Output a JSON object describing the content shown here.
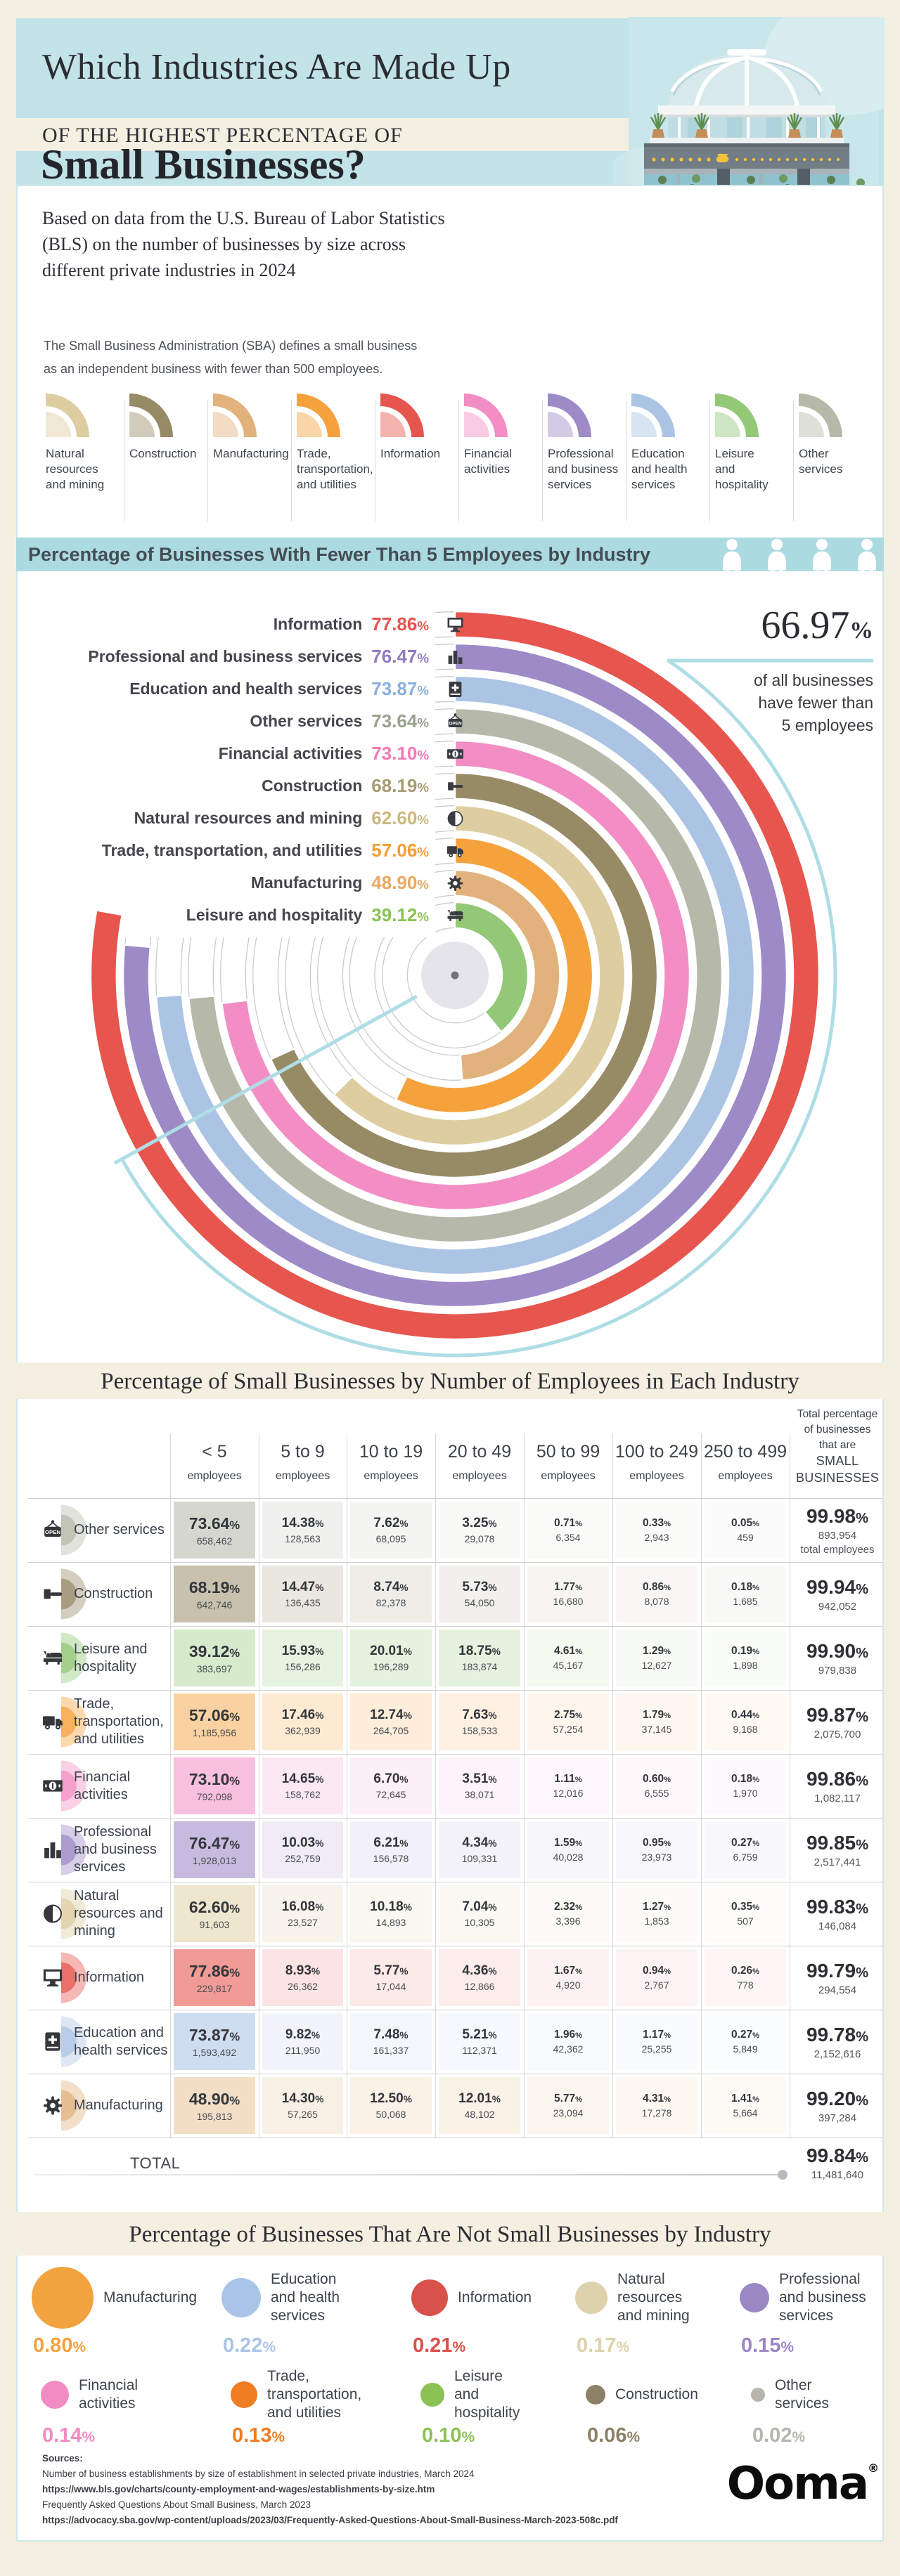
{
  "header": {
    "title1": "Which Industries Are Made Up",
    "title2": "OF THE HIGHEST PERCENTAGE OF",
    "title3": "Small Businesses?",
    "intro_lines": [
      "Based on data from the U.S. Bureau of Labor Statistics",
      "(BLS) on the number of businesses by size across",
      "different private industries in 2024"
    ],
    "sba_lines": [
      "The Small Business Administration (SBA) defines a small business",
      "as an independent business with fewer than 500 employees."
    ]
  },
  "colors": {
    "teal_header": "#c2e3e8",
    "teal_band": "#abdae0",
    "cream": "#f4f0e1",
    "blue_overlay": "#aedde5"
  },
  "industries": {
    "natural": {
      "label": "Natural resources and mining",
      "short": "Natural\nresources\nand mining",
      "color": "#ddcda0",
      "accent": "#ccb87f",
      "bubble_color": "#ddd2ab",
      "icon": "half-moon-icon"
    },
    "construction": {
      "label": "Construction",
      "short": "Construction",
      "color": "#978b66",
      "accent": "#a79c72",
      "bubble_color": "#8c8166",
      "icon": "hammer-icon"
    },
    "manufacturing": {
      "label": "Manufacturing",
      "short": "Manufacturing",
      "color": "#e2b27d",
      "accent": "#e8a963",
      "bubble_color": "#f2a33f",
      "icon": "gear-icon"
    },
    "trade": {
      "label": "Trade, transportation, and utilities",
      "short": "Trade,\ntransportation,\nand utilities",
      "color": "#f5a13c",
      "accent": "#f59d33",
      "bubble_color": "#ef7d23",
      "icon": "truck-icon"
    },
    "information": {
      "label": "Information",
      "short": "Information",
      "color": "#e6564e",
      "accent": "#e4544c",
      "bubble_color": "#d8514a",
      "icon": "monitor-icon"
    },
    "financial": {
      "label": "Financial activities",
      "short": "Financial\nactivities",
      "color": "#f28ec4",
      "accent": "#f07ab8",
      "bubble_color": "#f18cc2",
      "icon": "banknote-icon"
    },
    "professional": {
      "label": "Professional and business services",
      "short": "Professional\nand business\nservices",
      "color": "#9d8ac6",
      "accent": "#8f7cc0",
      "bubble_color": "#9c87c5",
      "icon": "bar-chart-icon"
    },
    "education": {
      "label": "Education and health services",
      "short": "Education\nand health\nservices",
      "color": "#abc4e4",
      "accent": "#8cb0dd",
      "bubble_color": "#a9c4e6",
      "icon": "book-plus-icon"
    },
    "leisure": {
      "label": "Leisure and hospitality",
      "short": "Leisure\nand\nhospitality",
      "color": "#92c876",
      "accent": "#8cc254",
      "bubble_color": "#8cc254",
      "icon": "bed-icon"
    },
    "other": {
      "label": "Other services",
      "short": "Other\nservices",
      "color": "#b6b9aa",
      "accent": "#9aa18e",
      "bubble_color": "#b6b6ae",
      "icon": "open-sign-icon"
    }
  },
  "legend_order": [
    "natural",
    "construction",
    "manufacturing",
    "trade",
    "information",
    "financial",
    "professional",
    "education",
    "leisure",
    "other"
  ],
  "band5": {
    "label": "Percentage of Businesses With Fewer Than 5 Employees by Industry"
  },
  "radial": {
    "callout": {
      "value": "66.97",
      "suffix": "%",
      "lines": [
        "of all businesses",
        "have fewer than",
        "5 employees"
      ]
    }
  },
  "sections": {
    "table_title": "Percentage of Small Businesses by Number of Employees in Each Industry",
    "not_small_title": "Percentage of Businesses That Are Not Small Businesses by Industry"
  },
  "table": {
    "columns": [
      "< 5",
      "5 to 9",
      "10 to 19",
      "20 to 49",
      "50 to 99",
      "100 to 249",
      "250 to 499"
    ],
    "col_sub": "employees",
    "total_header_lines": [
      "Total percentage",
      "of businesses",
      "that are"
    ],
    "total_header_big": [
      "SMALL",
      "BUSINESSES"
    ],
    "total_label": "TOTAL",
    "total_pct": 99.84,
    "total_count": "11,481,640",
    "first_row_note": "total employees",
    "rows": [
      {
        "id": "other",
        "cells": [
          [
            73.64,
            "658,462"
          ],
          [
            14.38,
            "128,563"
          ],
          [
            7.62,
            "68,095"
          ],
          [
            3.25,
            "29,078"
          ],
          [
            0.71,
            "6,354"
          ],
          [
            0.33,
            "2,943"
          ],
          [
            0.05,
            "459"
          ]
        ],
        "total": 99.98,
        "count": "893,954"
      },
      {
        "id": "construction",
        "cells": [
          [
            68.19,
            "642,746"
          ],
          [
            14.47,
            "136,435"
          ],
          [
            8.74,
            "82,378"
          ],
          [
            5.73,
            "54,050"
          ],
          [
            1.77,
            "16,680"
          ],
          [
            0.86,
            "8,078"
          ],
          [
            0.18,
            "1,685"
          ]
        ],
        "total": 99.94,
        "count": "942,052"
      },
      {
        "id": "leisure",
        "cells": [
          [
            39.12,
            "383,697"
          ],
          [
            15.93,
            "156,286"
          ],
          [
            20.01,
            "196,289"
          ],
          [
            18.75,
            "183,874"
          ],
          [
            4.61,
            "45,167"
          ],
          [
            1.29,
            "12,627"
          ],
          [
            0.19,
            "1,898"
          ]
        ],
        "total": 99.9,
        "count": "979,838"
      },
      {
        "id": "trade",
        "cells": [
          [
            57.06,
            "1,185,956"
          ],
          [
            17.46,
            "362,939"
          ],
          [
            12.74,
            "264,705"
          ],
          [
            7.63,
            "158,533"
          ],
          [
            2.75,
            "57,254"
          ],
          [
            1.79,
            "37,145"
          ],
          [
            0.44,
            "9,168"
          ]
        ],
        "total": 99.87,
        "count": "2,075,700"
      },
      {
        "id": "financial",
        "cells": [
          [
            73.1,
            "792,098"
          ],
          [
            14.65,
            "158,762"
          ],
          [
            6.7,
            "72,645"
          ],
          [
            3.51,
            "38,071"
          ],
          [
            1.11,
            "12,016"
          ],
          [
            0.6,
            "6,555"
          ],
          [
            0.18,
            "1,970"
          ]
        ],
        "total": 99.86,
        "count": "1,082,117"
      },
      {
        "id": "professional",
        "cells": [
          [
            76.47,
            "1,928,013"
          ],
          [
            10.03,
            "252,759"
          ],
          [
            6.21,
            "156,578"
          ],
          [
            4.34,
            "109,331"
          ],
          [
            1.59,
            "40,028"
          ],
          [
            0.95,
            "23,973"
          ],
          [
            0.27,
            "6,759"
          ]
        ],
        "total": 99.85,
        "count": "2,517,441"
      },
      {
        "id": "natural",
        "cells": [
          [
            62.6,
            "91,603"
          ],
          [
            16.08,
            "23,527"
          ],
          [
            10.18,
            "14,893"
          ],
          [
            7.04,
            "10,305"
          ],
          [
            2.32,
            "3,396"
          ],
          [
            1.27,
            "1,853"
          ],
          [
            0.35,
            "507"
          ]
        ],
        "total": 99.83,
        "count": "146,084"
      },
      {
        "id": "information",
        "cells": [
          [
            77.86,
            "229,817"
          ],
          [
            8.93,
            "26,362"
          ],
          [
            5.77,
            "17,044"
          ],
          [
            4.36,
            "12,866"
          ],
          [
            1.67,
            "4,920"
          ],
          [
            0.94,
            "2,767"
          ],
          [
            0.26,
            "778"
          ]
        ],
        "total": 99.79,
        "count": "294,554"
      },
      {
        "id": "education",
        "cells": [
          [
            73.87,
            "1,593,492"
          ],
          [
            9.82,
            "211,950"
          ],
          [
            7.48,
            "161,337"
          ],
          [
            5.21,
            "112,371"
          ],
          [
            1.96,
            "42,362"
          ],
          [
            1.17,
            "25,255"
          ],
          [
            0.27,
            "5,849"
          ]
        ],
        "total": 99.78,
        "count": "2,152,616"
      },
      {
        "id": "manufacturing",
        "cells": [
          [
            48.9,
            "195,813"
          ],
          [
            14.3,
            "57,265"
          ],
          [
            12.5,
            "50,068"
          ],
          [
            12.01,
            "48,102"
          ],
          [
            5.77,
            "23,094"
          ],
          [
            4.31,
            "17,278"
          ],
          [
            1.41,
            "5,664"
          ]
        ],
        "total": 99.2,
        "count": "397,284"
      }
    ]
  },
  "footer": {
    "sources_label": "Sources:",
    "lines": [
      {
        "text": "Number of business establishments by size of establishment in selected private industries, March 2024",
        "bold": false
      },
      {
        "text": "https://www.bls.gov/charts/county-employment-and-wages/establishments-by-size.htm",
        "bold": true
      },
      {
        "text": "Frequently Asked Questions About Small Business, March 2023",
        "bold": false
      },
      {
        "text": "https://advocacy.sba.gov/wp-content/uploads/2023/03/Frequently-Asked-Questions-About-Small-Business-March-2023-508c.pdf",
        "bold": true
      }
    ],
    "logo_text": "Ooma",
    "logo_reg": "®"
  },
  "chart_data": [
    {
      "type": "bar",
      "subtype": "radial-concentric-arcs",
      "title": "Percentage of Businesses With Fewer Than 5 Employees by Industry",
      "categories": [
        "Information",
        "Professional and business services",
        "Education and health services",
        "Other services",
        "Financial activities",
        "Construction",
        "Natural resources and mining",
        "Trade, transportation, and utilities",
        "Manufacturing",
        "Leisure and hospitality"
      ],
      "values": [
        77.86,
        76.47,
        73.87,
        73.64,
        73.1,
        68.19,
        62.6,
        57.06,
        48.9,
        39.12
      ],
      "series_ids": [
        "information",
        "professional",
        "education",
        "other",
        "financial",
        "construction",
        "natural",
        "trade",
        "manufacturing",
        "leisure"
      ],
      "annotation": {
        "value": 66.97,
        "label": "of all businesses have fewer than 5 employees"
      },
      "value_range": [
        0,
        100
      ],
      "unit": "%"
    },
    {
      "type": "table",
      "title": "Percentage of Small Businesses by Number of Employees in Each Industry",
      "columns": [
        "< 5 employees",
        "5 to 9 employees",
        "10 to 19 employees",
        "20 to 49 employees",
        "50 to 99 employees",
        "100 to 249 employees",
        "250 to 499 employees",
        "Total percentage of businesses that are SMALL BUSINESSES"
      ],
      "note": "See table.rows in this JSON for full percentage and count matrix; overall total 99.84% / 11,481,640"
    },
    {
      "type": "scatter",
      "subtype": "proportional-bubbles",
      "title": "Percentage of Businesses That Are Not Small Businesses by Industry",
      "categories": [
        "Manufacturing",
        "Education and health services",
        "Information",
        "Natural resources and mining",
        "Professional and business services",
        "Financial activities",
        "Trade, transportation, and utilities",
        "Leisure and hospitality",
        "Construction",
        "Other services"
      ],
      "values": [
        0.8,
        0.22,
        0.21,
        0.17,
        0.15,
        0.14,
        0.13,
        0.1,
        0.06,
        0.02
      ],
      "unit": "%"
    }
  ],
  "bubbles": {
    "rows": [
      [
        "manufacturing",
        "education",
        "information",
        "natural",
        "professional"
      ],
      [
        "financial",
        "trade",
        "leisure",
        "construction",
        "other"
      ]
    ],
    "values": {
      "manufacturing": 0.8,
      "education": 0.22,
      "information": 0.21,
      "natural": 0.17,
      "professional": 0.15,
      "financial": 0.14,
      "trade": 0.13,
      "leisure": 0.1,
      "construction": 0.06,
      "other": 0.02
    }
  }
}
